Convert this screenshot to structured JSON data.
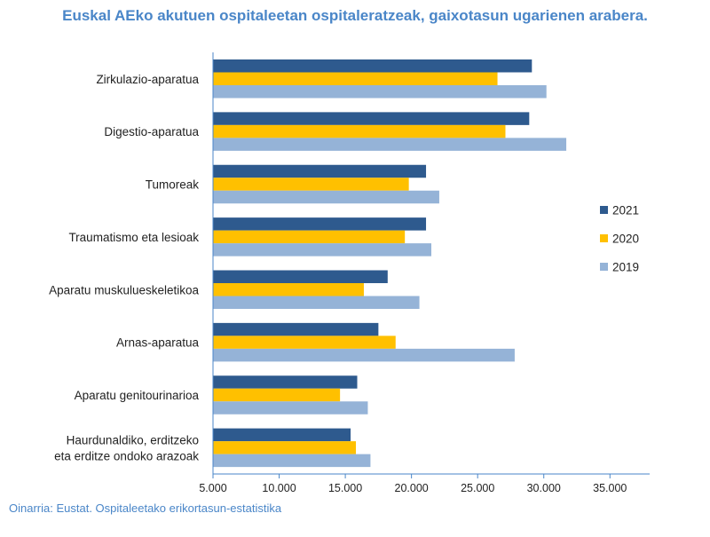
{
  "title": "Euskal AEko akutuen ospitaleetan ospitaleratzeak, gaixotasun ugarienen arabera.",
  "source": "Oinarria: Eustat. Ospitaleetako erikortasun-estatistika",
  "colors": {
    "2021": "#2e5a8e",
    "2020": "#ffc000",
    "2019": "#95b3d7",
    "title": "#4a86c8",
    "axis": "#4a86c8"
  },
  "chart_data": {
    "type": "bar",
    "orientation": "horizontal",
    "categories": [
      [
        "Zirkulazio-aparatua"
      ],
      [
        "Digestio-aparatua"
      ],
      [
        "Tumoreak"
      ],
      [
        "Traumatismo eta lesioak"
      ],
      [
        "Aparatu muskulueskeletikoa"
      ],
      [
        "Arnas-aparatua"
      ],
      [
        "Aparatu genitourinarioa"
      ],
      [
        "Haurdunaldiko, erditzeko",
        "eta erditze ondoko arazoak"
      ]
    ],
    "series": [
      {
        "name": "2021",
        "values": [
          29100,
          28900,
          21100,
          21100,
          18200,
          17500,
          15900,
          15400
        ]
      },
      {
        "name": "2020",
        "values": [
          26500,
          27100,
          19800,
          19500,
          16400,
          18800,
          14600,
          15800
        ]
      },
      {
        "name": "2019",
        "values": [
          30200,
          31700,
          22100,
          21500,
          20600,
          27800,
          16700,
          16900
        ]
      }
    ],
    "xlim": [
      5000,
      38000
    ],
    "xticks": [
      5000,
      10000,
      15000,
      20000,
      25000,
      30000,
      35000
    ],
    "xtick_labels": [
      "5.000",
      "10.000",
      "15.000",
      "20.000",
      "25.000",
      "30.000",
      "35.000"
    ],
    "legend": [
      "2021",
      "2020",
      "2019"
    ],
    "legend_position": "right",
    "grid": false
  }
}
